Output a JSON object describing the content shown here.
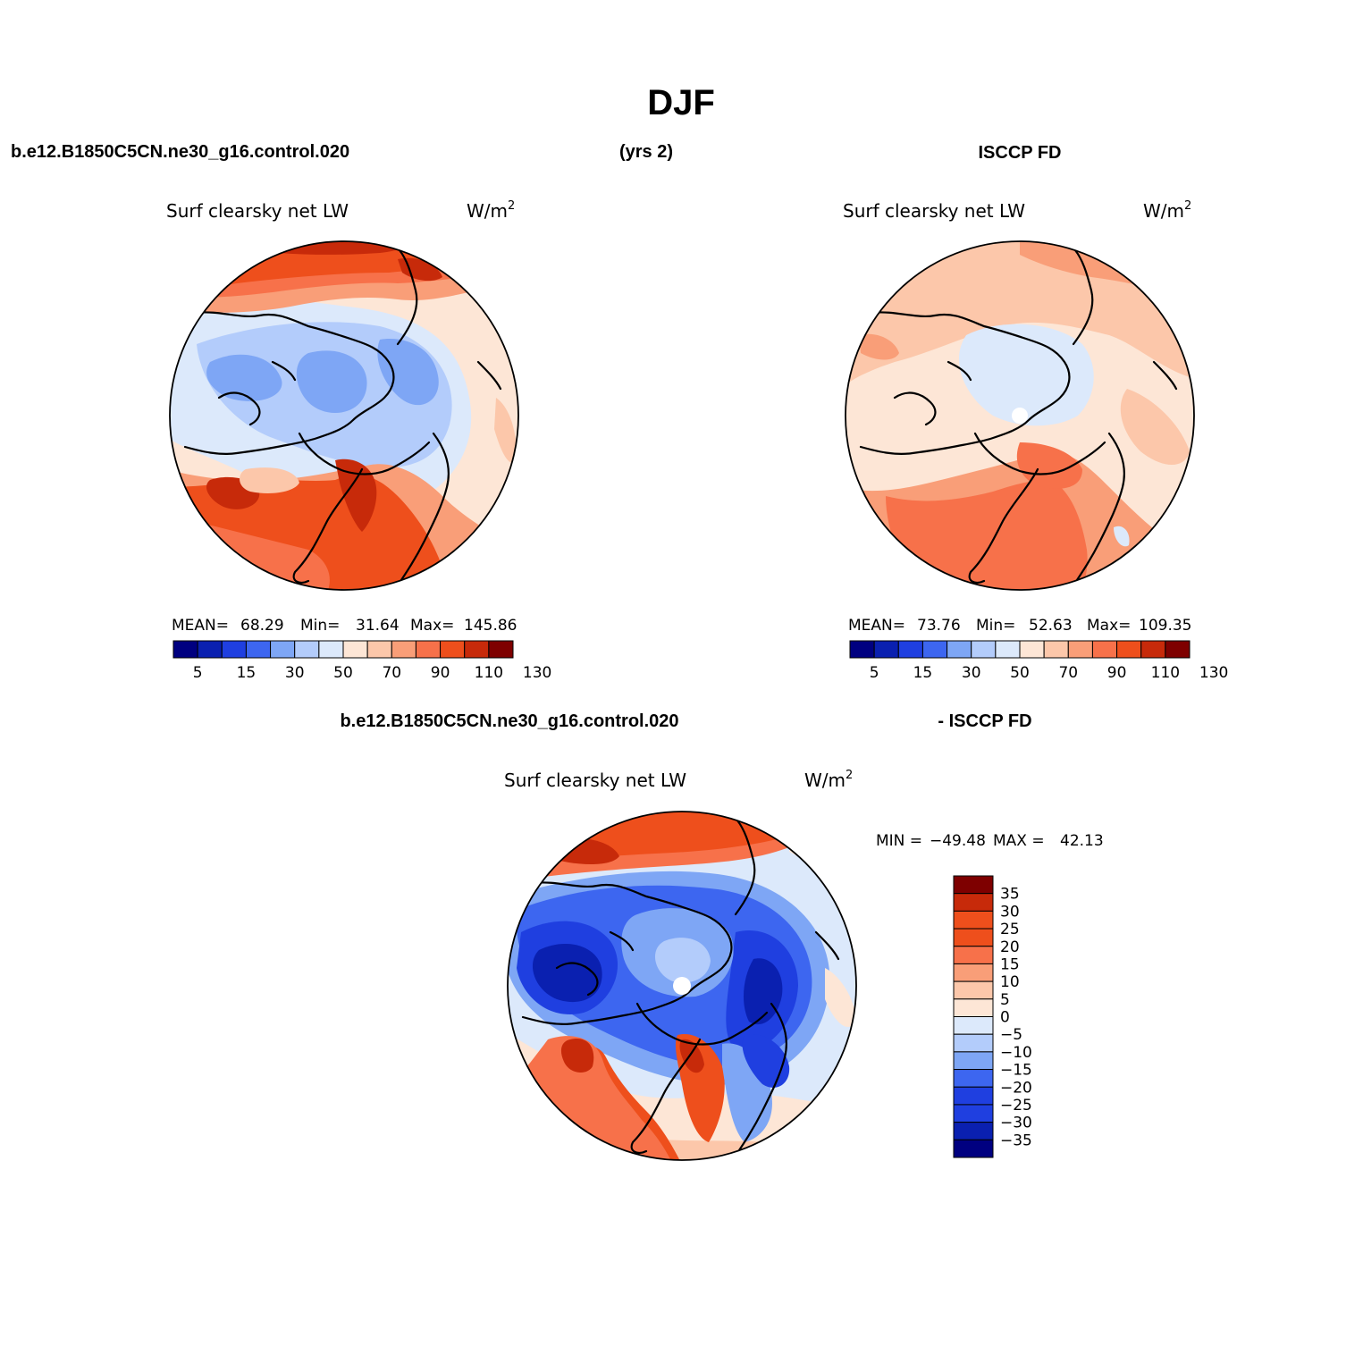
{
  "figure": {
    "title": "DJF",
    "case_name": "b.e12.B1850C5CN.ne30_g16.control.020",
    "years": "(yrs 2)",
    "obs_name": "ISCCP FD",
    "diff_label_left": "b.e12.B1850C5CN.ne30_g16.control.020",
    "diff_label_right": "- ISCCP FD"
  },
  "colors": {
    "d1": "#000080",
    "d2": "#0a20b0",
    "d3": "#1f3fe0",
    "d4": "#3d66f0",
    "d5": "#7ea6f5",
    "d6": "#b3ccfb",
    "d7": "#dce9fb",
    "w1": "#fde6d6",
    "w2": "#fcc7aa",
    "w3": "#f99e78",
    "w4": "#f7714a",
    "w5": "#ee4f1c",
    "w6": "#c72a0a",
    "w7": "#7e0000"
  },
  "chart_data": [
    {
      "type": "heatmap",
      "projection": "north-polar-stereographic",
      "title": "Surf clearsky net LW",
      "units": "W/m²",
      "units_base": "W/m",
      "units_exp": "2",
      "stats": {
        "mean_label": "MEAN=",
        "mean": "68.29",
        "min_label": "Min=",
        "min": "31.64",
        "max_label": "Max=",
        "max": "145.86"
      },
      "colorbar": {
        "orientation": "horizontal",
        "levels": [
          0,
          10,
          20,
          30,
          40,
          50,
          60,
          70,
          80,
          90,
          100,
          110,
          120,
          130
        ],
        "tick_labels": [
          "5",
          "15",
          "30",
          "50",
          "70",
          "90",
          "110",
          "130"
        ]
      }
    },
    {
      "type": "heatmap",
      "projection": "north-polar-stereographic",
      "title": "Surf clearsky net LW",
      "units": "W/m²",
      "units_base": "W/m",
      "units_exp": "2",
      "stats": {
        "mean_label": "MEAN=",
        "mean": "73.76",
        "min_label": "Min=",
        "min": "52.63",
        "max_label": "Max=",
        "max": "109.35"
      },
      "colorbar": {
        "orientation": "horizontal",
        "levels": [
          0,
          10,
          20,
          30,
          40,
          50,
          60,
          70,
          80,
          90,
          100,
          110,
          120,
          130
        ],
        "tick_labels": [
          "5",
          "15",
          "30",
          "50",
          "70",
          "90",
          "110",
          "130"
        ]
      }
    },
    {
      "type": "heatmap",
      "projection": "north-polar-stereographic",
      "title": "Surf clearsky net LW",
      "units": "W/m²",
      "units_base": "W/m",
      "units_exp": "2",
      "stats": {
        "min_label": "MIN =",
        "min": "−49.48",
        "max_label": "MAX =",
        "max": "42.13"
      },
      "colorbar": {
        "orientation": "vertical",
        "levels": [
          35,
          30,
          25,
          20,
          15,
          10,
          5,
          0,
          -5,
          -10,
          -15,
          -20,
          -25,
          -30,
          -35
        ],
        "tick_labels": [
          "35",
          "30",
          "25",
          "20",
          "15",
          "10",
          "5",
          "0",
          "−5",
          "−10",
          "−15",
          "−20",
          "−25",
          "−30",
          "−35"
        ]
      }
    }
  ]
}
